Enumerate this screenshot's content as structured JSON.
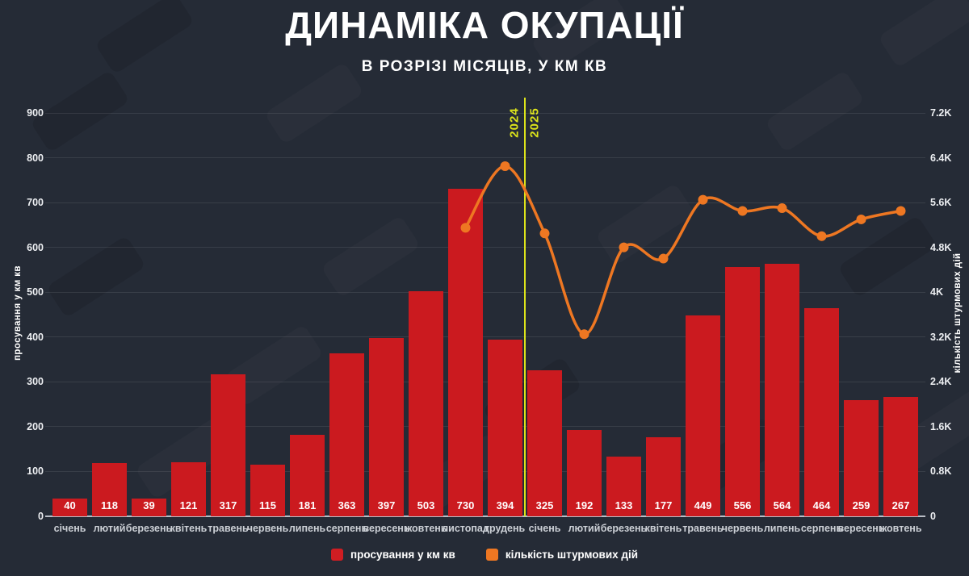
{
  "header": {
    "title": "ДИНАМІКА ОКУПАЦІЇ",
    "subtitle": "В РОЗРІЗІ МІСЯЦІВ, У КМ КВ"
  },
  "divider": {
    "left_year": "2024",
    "right_year": "2025",
    "color": "#dde41a"
  },
  "legend": [
    {
      "label": "просування у км кв",
      "color": "#cf1d22"
    },
    {
      "label": "кількість штурмових дій",
      "color": "#ee7722"
    }
  ],
  "chart_data": {
    "type": "bar",
    "title": "ДИНАМІКА ОКУПАЦІЇ",
    "subtitle": "В РОЗРІЗІ МІСЯЦІВ, У КМ КВ",
    "categories": [
      "січень",
      "лютий",
      "березень",
      "квітень",
      "травень",
      "червень",
      "липень",
      "серпень",
      "вересень",
      "жовтень",
      "листопад",
      "грудень",
      "січень",
      "лютий",
      "березень",
      "квітень",
      "травень",
      "червень",
      "липень",
      "серпень",
      "вересень",
      "жовтень"
    ],
    "year_divider_after_index": 11,
    "series": [
      {
        "name": "просування у км кв",
        "type": "bar",
        "axis": "left",
        "color": "#cb1a1f",
        "values": [
          40,
          118,
          39,
          121,
          317,
          115,
          181,
          363,
          397,
          503,
          730,
          394,
          325,
          192,
          133,
          177,
          449,
          556,
          564,
          464,
          259,
          267
        ]
      },
      {
        "name": "кількість штурмових дій",
        "type": "line",
        "axis": "right",
        "color": "#ee7722",
        "values": [
          null,
          null,
          null,
          null,
          null,
          null,
          null,
          null,
          null,
          null,
          5150,
          6250,
          5050,
          3250,
          4800,
          4600,
          5650,
          5450,
          5500,
          5000,
          5300,
          5450
        ]
      }
    ],
    "left_axis": {
      "label": "просування у км кв",
      "min": 0,
      "max": 900,
      "ticks": [
        "0",
        "100",
        "200",
        "300",
        "400",
        "500",
        "600",
        "700",
        "800",
        "900"
      ]
    },
    "right_axis": {
      "label": "кількість штурмових дій",
      "min": 0,
      "max": 7200,
      "ticks": [
        "0",
        "0.8K",
        "1.6K",
        "2.4K",
        "3.2K",
        "4K",
        "4.8K",
        "5.6K",
        "6.4K",
        "7.2K"
      ]
    },
    "grid": "horizontal",
    "legend_position": "bottom"
  }
}
